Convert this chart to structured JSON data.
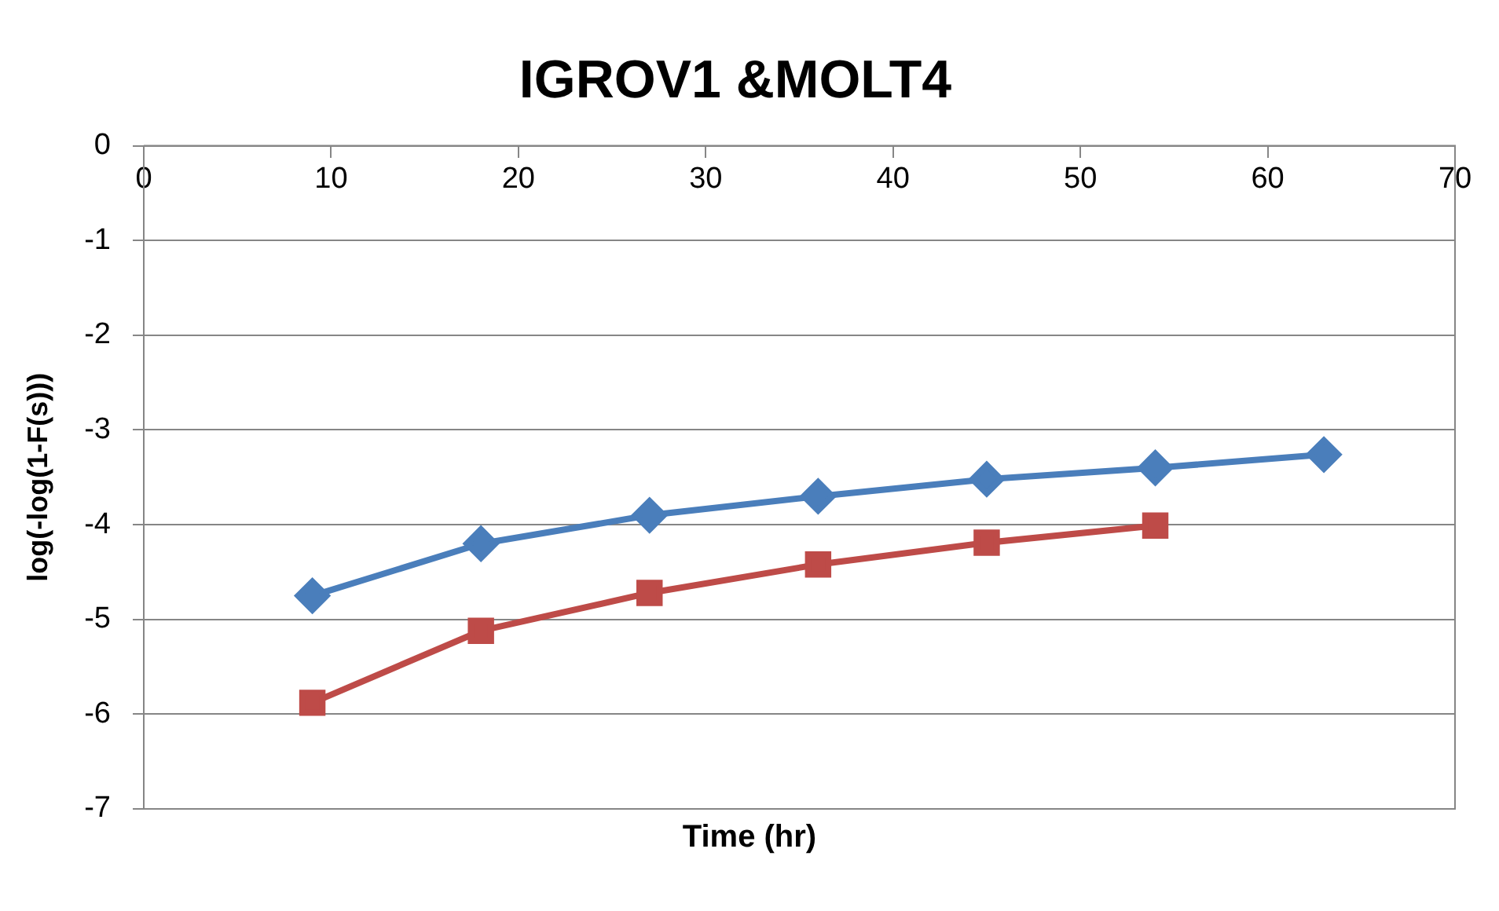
{
  "chart_data": {
    "type": "line",
    "title": "IGROV1 &MOLT4",
    "xlabel": "Time (hr)",
    "ylabel": "log(-log(1-F(s)))",
    "x": [
      9,
      18,
      27,
      36,
      45,
      54,
      63
    ],
    "series": [
      {
        "color": "#4a7ebb",
        "marker": "diamond",
        "values": [
          -4.75,
          -4.2,
          -3.9,
          -3.7,
          -3.52,
          -3.4,
          -3.26
        ]
      },
      {
        "color": "#be4b48",
        "marker": "square",
        "values": [
          -5.88,
          -5.12,
          -4.72,
          -4.42,
          -4.19,
          -4.01,
          null
        ]
      }
    ],
    "xlim": [
      0,
      70
    ],
    "xticks": [
      0,
      10,
      20,
      30,
      40,
      50,
      60,
      70
    ],
    "ylim": [
      -7,
      0
    ],
    "yticks": [
      0,
      -1,
      -2,
      -3,
      -4,
      -5,
      -6,
      -7
    ],
    "grid": "y",
    "legend": false
  }
}
